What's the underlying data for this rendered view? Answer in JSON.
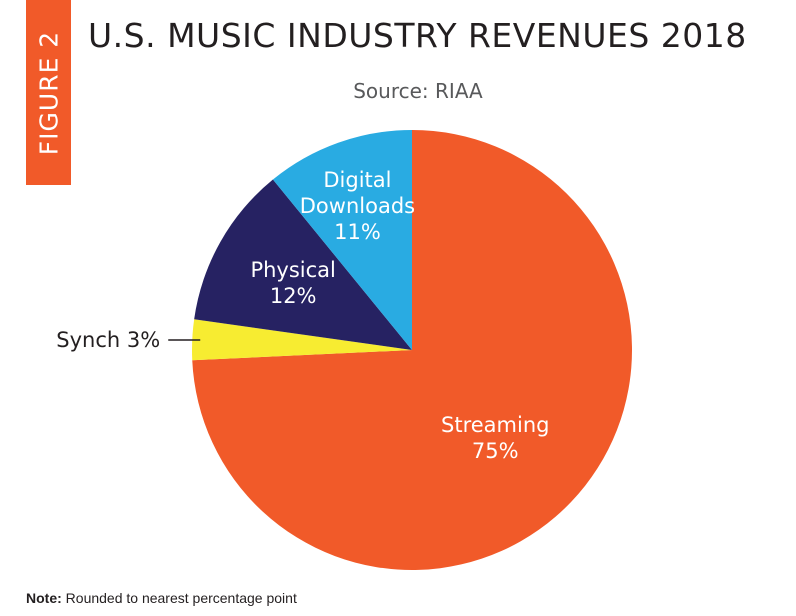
{
  "figure_tab": "FIGURE 2",
  "chart_data": {
    "type": "pie",
    "title": "U.S. MUSIC INDUSTRY REVENUES 2018",
    "subtitle": "Source: RIAA",
    "slices": [
      {
        "label": "Streaming",
        "value": 75,
        "value_text": "75%",
        "color": "#f15a29",
        "text_color": "#ffffff"
      },
      {
        "label": "Synch",
        "value": 3,
        "value_text": "3%",
        "color": "#f7ec31",
        "text_color": "#231f20"
      },
      {
        "label": "Physical",
        "value": 12,
        "value_text": "12%",
        "color": "#262262",
        "text_color": "#ffffff"
      },
      {
        "label": "Digital Downloads",
        "label_lines": [
          "Digital",
          "Downloads"
        ],
        "value": 11,
        "value_text": "11%",
        "color": "#29abe2",
        "text_color": "#ffffff"
      }
    ]
  },
  "note": {
    "prefix": "Note:",
    "text": " Rounded to nearest percentage point"
  }
}
